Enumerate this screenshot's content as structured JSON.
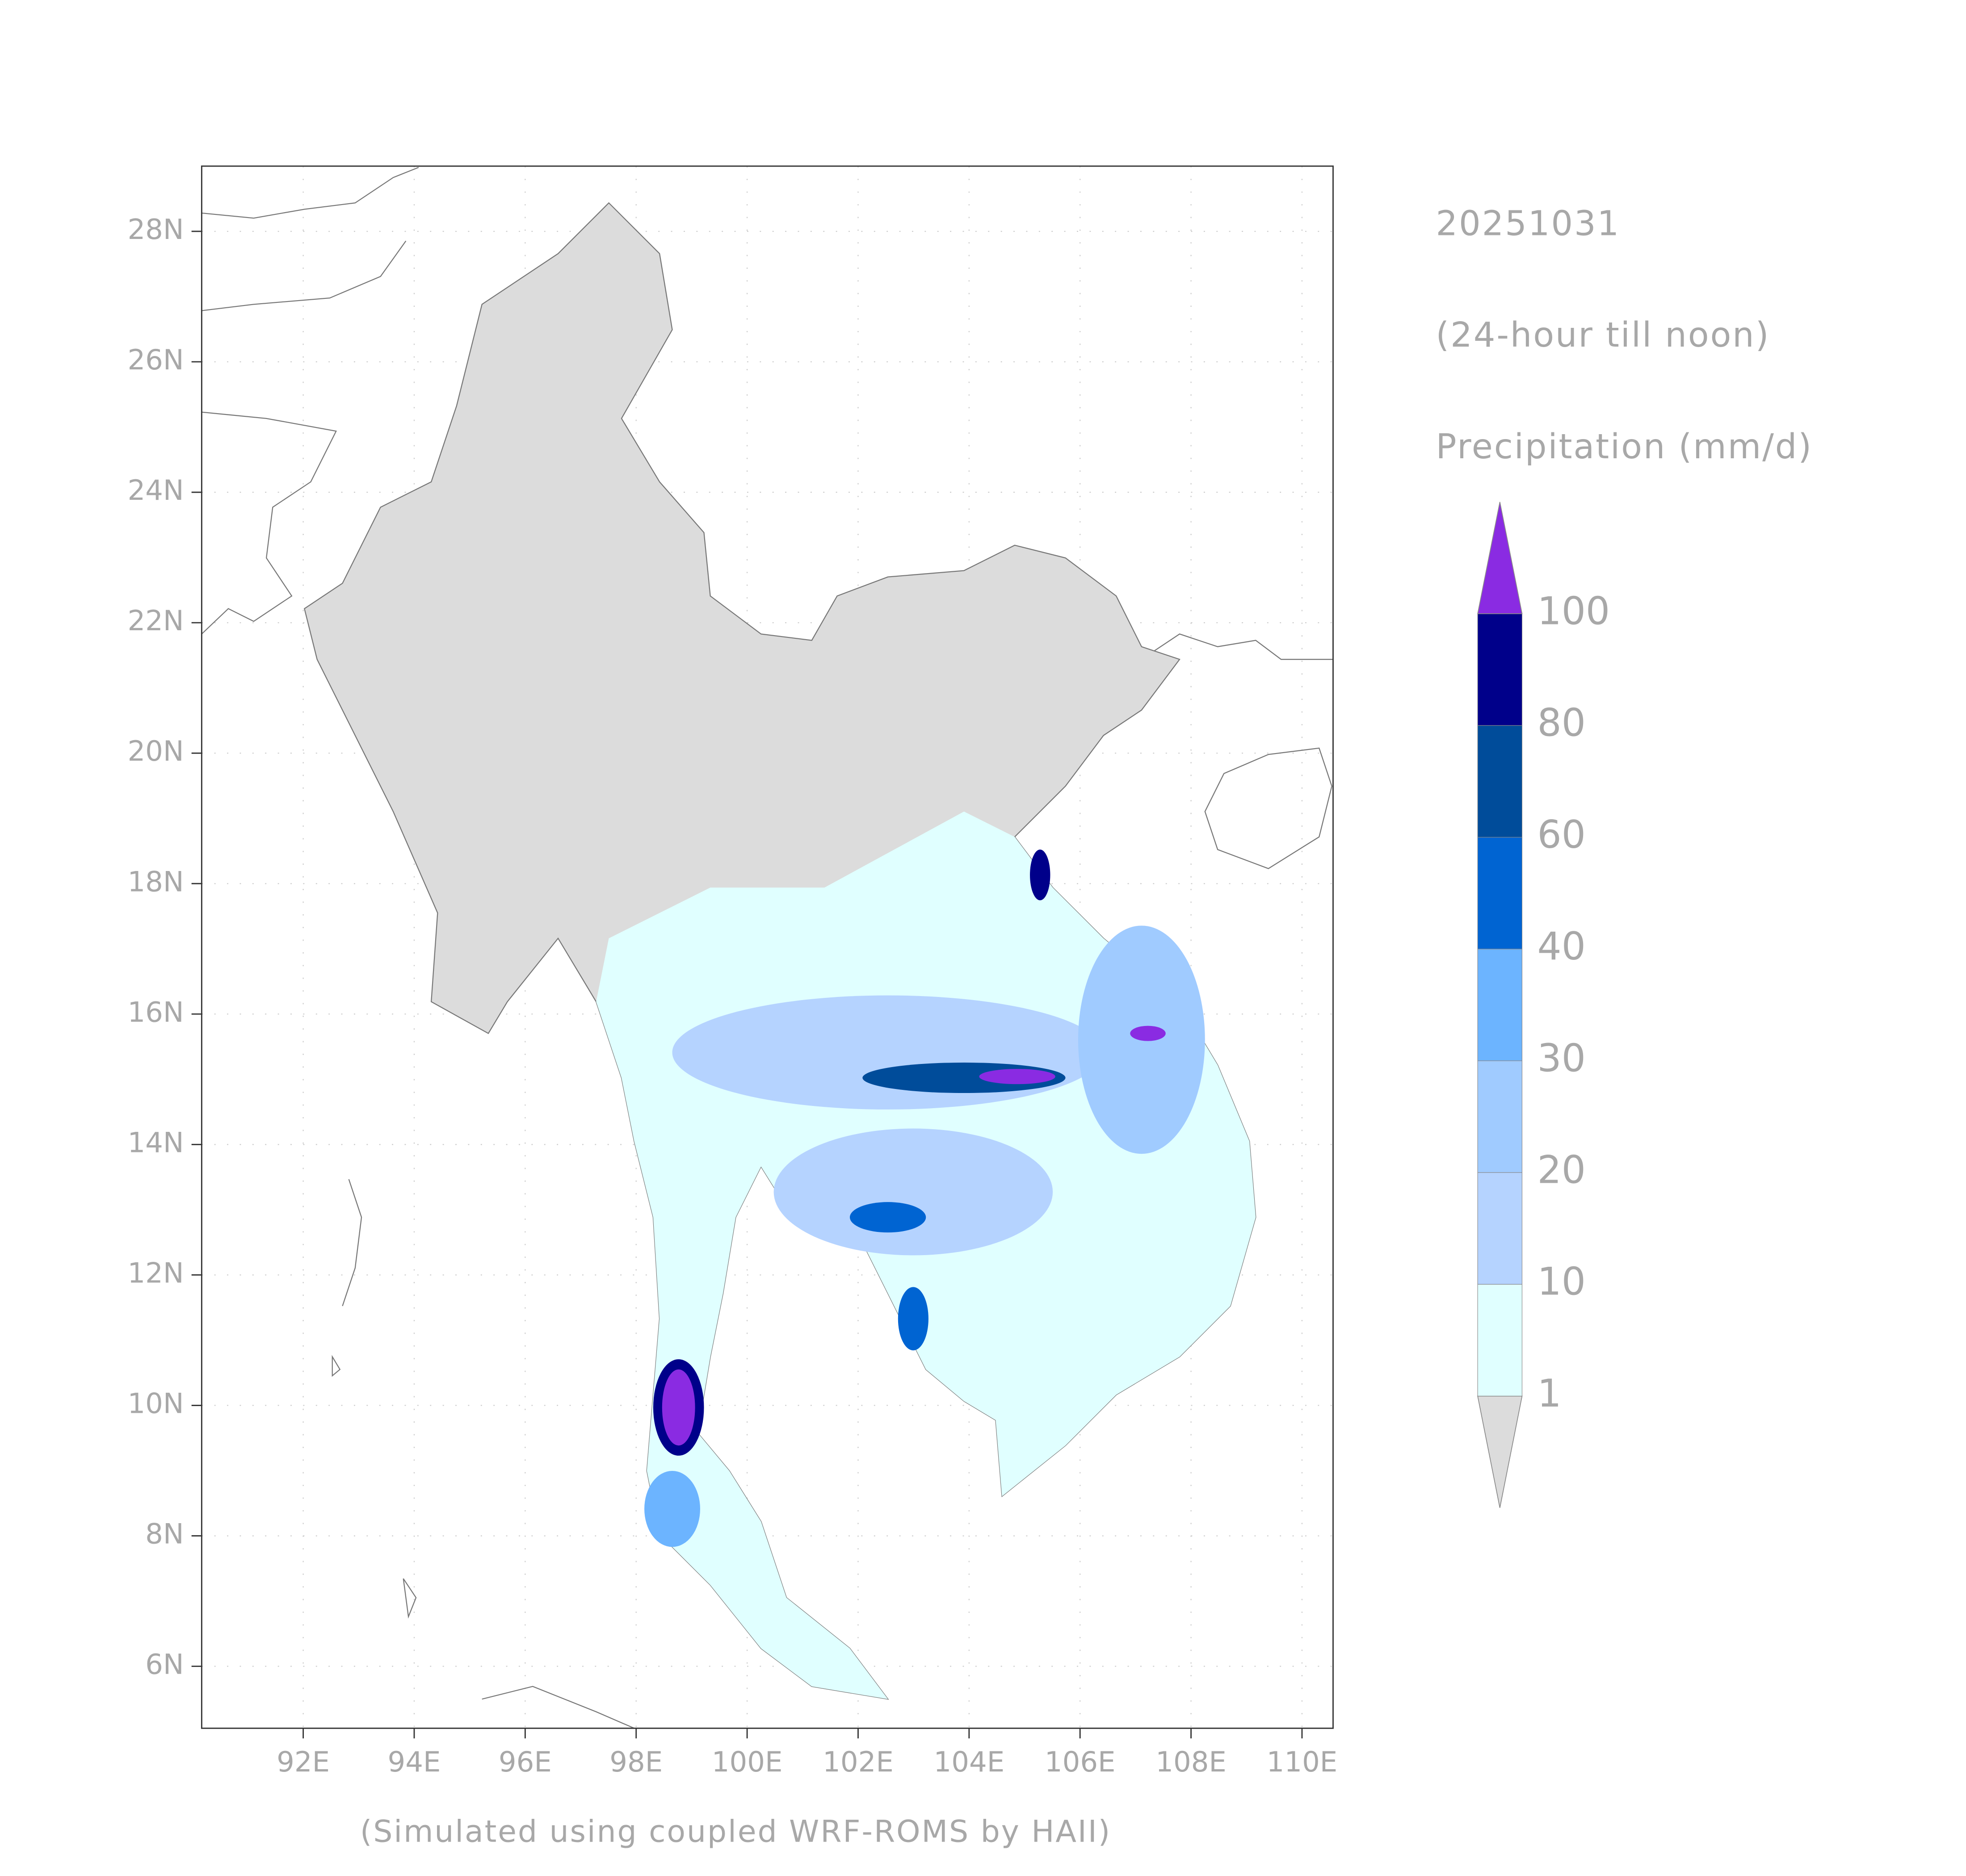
{
  "title_lines": [
    "20251031",
    "(24-hour till noon)",
    "Precipitation (mm/d)"
  ],
  "footer": "(Simulated using coupled WRF-ROMS by HAII)",
  "map": {
    "xlim": [
      90.17,
      110.56
    ],
    "ylim": [
      5.05,
      29.0
    ],
    "grid": true,
    "xticks": [
      {
        "value": 92,
        "label": "92E"
      },
      {
        "value": 94,
        "label": "94E"
      },
      {
        "value": 96,
        "label": "96E"
      },
      {
        "value": 98,
        "label": "98E"
      },
      {
        "value": 100,
        "label": "100E"
      },
      {
        "value": 102,
        "label": "102E"
      },
      {
        "value": 104,
        "label": "104E"
      },
      {
        "value": 106,
        "label": "106E"
      },
      {
        "value": 108,
        "label": "108E"
      },
      {
        "value": 110,
        "label": "110E"
      }
    ],
    "yticks": [
      {
        "value": 6,
        "label": "6N"
      },
      {
        "value": 8,
        "label": "8N"
      },
      {
        "value": 10,
        "label": "10N"
      },
      {
        "value": 12,
        "label": "12N"
      },
      {
        "value": 14,
        "label": "14N"
      },
      {
        "value": 16,
        "label": "16N"
      },
      {
        "value": 18,
        "label": "18N"
      },
      {
        "value": 20,
        "label": "20N"
      },
      {
        "value": 22,
        "label": "22N"
      },
      {
        "value": 24,
        "label": "24N"
      },
      {
        "value": 26,
        "label": "26N"
      },
      {
        "value": 28,
        "label": "28N"
      }
    ]
  },
  "colorbar": {
    "levels": [
      1,
      10,
      20,
      30,
      40,
      60,
      80,
      100
    ],
    "colors": [
      "#dcdcdc",
      "#e0ffff",
      "#b5d3ff",
      "#a0cbff",
      "#6cb4ff",
      "#0064d2",
      "#004c9a",
      "#00008a",
      "#8a2be2"
    ]
  }
}
